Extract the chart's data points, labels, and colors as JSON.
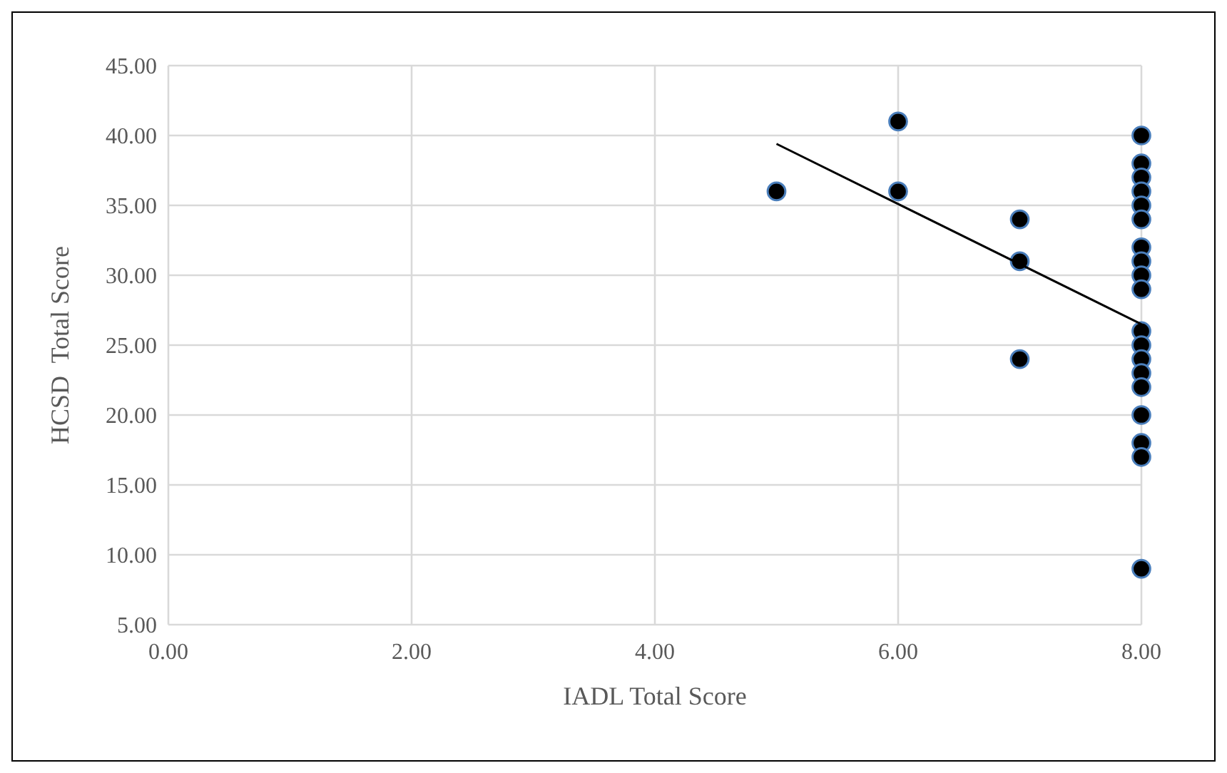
{
  "chart_data": {
    "type": "scatter",
    "xlabel": "IADL Total Score",
    "ylabel": "HCSD  Total Score",
    "xlim": [
      0,
      8
    ],
    "ylim": [
      5,
      45
    ],
    "xticks": [
      {
        "value": 0,
        "label": "0.00"
      },
      {
        "value": 2,
        "label": "2.00"
      },
      {
        "value": 4,
        "label": "4.00"
      },
      {
        "value": 6,
        "label": "6.00"
      },
      {
        "value": 8,
        "label": "8.00"
      }
    ],
    "yticks": [
      {
        "value": 5,
        "label": "5.00"
      },
      {
        "value": 10,
        "label": "10.00"
      },
      {
        "value": 15,
        "label": "15.00"
      },
      {
        "value": 20,
        "label": "20.00"
      },
      {
        "value": 25,
        "label": "25.00"
      },
      {
        "value": 30,
        "label": "30.00"
      },
      {
        "value": 35,
        "label": "35.00"
      },
      {
        "value": 40,
        "label": "40.00"
      },
      {
        "value": 45,
        "label": "45.00"
      }
    ],
    "grid": true,
    "series": [
      {
        "marker": "circle",
        "color": "#000000",
        "x": [
          5,
          6,
          6,
          7,
          7,
          7,
          8,
          8,
          8,
          8,
          8,
          8,
          8,
          8,
          8,
          8,
          8,
          8,
          8,
          8,
          8,
          8,
          8,
          8,
          8
        ],
        "values": [
          36,
          41,
          36,
          34,
          31,
          24,
          40,
          38,
          37,
          36,
          35,
          34,
          32,
          31,
          30,
          29,
          26,
          25,
          24,
          23,
          22,
          20,
          18,
          17,
          9
        ]
      },
      {
        "type": "line",
        "color": "#000000",
        "x": [
          5,
          8
        ],
        "values": [
          39.4,
          26.5
        ]
      }
    ]
  }
}
